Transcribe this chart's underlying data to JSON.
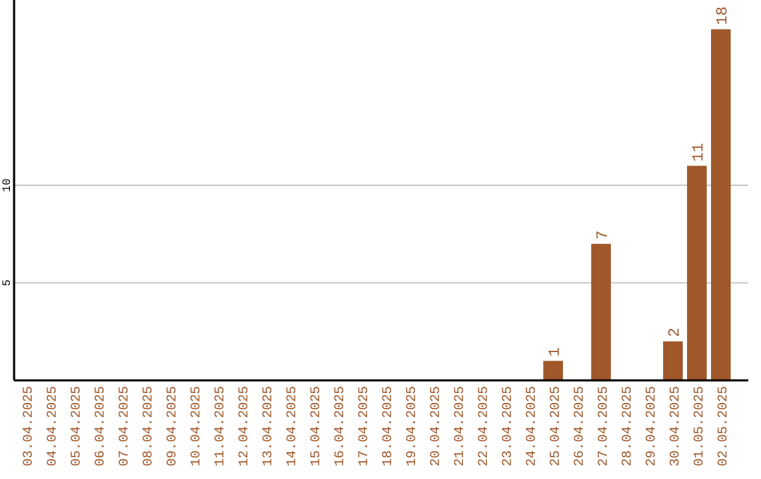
{
  "chart_data": {
    "type": "bar",
    "categories": [
      "03.04.2025",
      "04.04.2025",
      "05.04.2025",
      "06.04.2025",
      "07.04.2025",
      "08.04.2025",
      "09.04.2025",
      "10.04.2025",
      "11.04.2025",
      "12.04.2025",
      "13.04.2025",
      "14.04.2025",
      "15.04.2025",
      "16.04.2025",
      "17.04.2025",
      "18.04.2025",
      "19.04.2025",
      "20.04.2025",
      "21.04.2025",
      "22.04.2025",
      "23.04.2025",
      "24.04.2025",
      "25.04.2025",
      "26.04.2025",
      "27.04.2025",
      "28.04.2025",
      "29.04.2025",
      "30.04.2025",
      "01.05.2025",
      "02.05.2025"
    ],
    "values": [
      0,
      0,
      0,
      0,
      0,
      0,
      0,
      0,
      0,
      0,
      0,
      0,
      0,
      0,
      0,
      0,
      0,
      0,
      0,
      0,
      0,
      0,
      1,
      0,
      7,
      0,
      0,
      2,
      11,
      18
    ],
    "value_labels": [
      null,
      null,
      null,
      null,
      null,
      null,
      null,
      null,
      null,
      null,
      null,
      null,
      null,
      null,
      null,
      null,
      null,
      null,
      null,
      null,
      null,
      null,
      "1",
      null,
      "7",
      null,
      null,
      "2",
      "11",
      "18"
    ],
    "color": "#a0582a",
    "ylim": [
      0,
      19.5
    ],
    "yticks": [
      5,
      10
    ],
    "grid": "y"
  }
}
